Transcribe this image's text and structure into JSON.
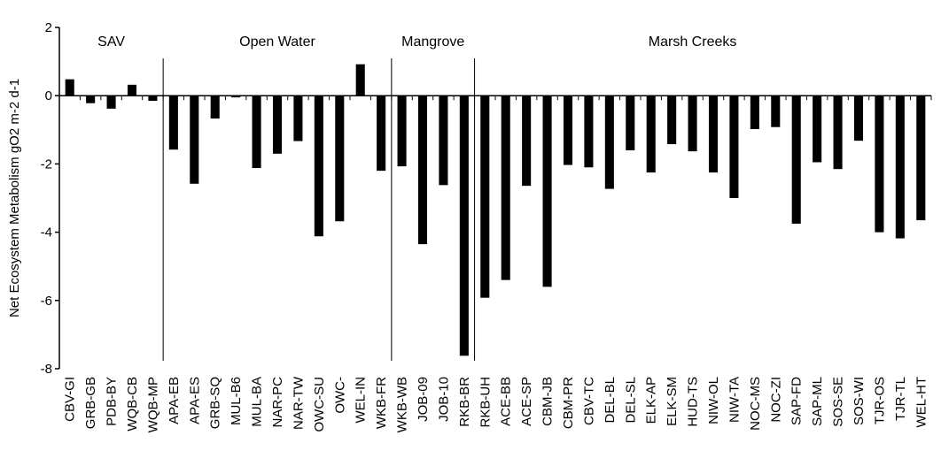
{
  "chart_data": {
    "type": "bar",
    "title": "",
    "xlabel": "",
    "ylabel": "Net Ecosystem Metabolism gO2 m-2 d-1",
    "ylim": [
      -8,
      2
    ],
    "yticks": [
      "2",
      "0",
      "-2",
      "-4",
      "-6",
      "-8"
    ],
    "grid": false,
    "legend": "none",
    "bar_color": "#000000",
    "groups": [
      {
        "name": "SAV",
        "start": 0,
        "end": 4
      },
      {
        "name": "Open Water",
        "start": 5,
        "end": 15
      },
      {
        "name": "Mangrove",
        "start": 16,
        "end": 19
      },
      {
        "name": "Marsh Creeks",
        "start": 20,
        "end": 40
      }
    ],
    "categories": [
      "CBV-GI",
      "GRB-GB",
      "PDB-BY",
      "WQB-CB",
      "WQB-MP",
      "APA-EB",
      "APA-ES",
      "GRB-SQ",
      "MUL-B6",
      "MUL-BA",
      "NAR-PC",
      "NAR-TW",
      "OWC-SU",
      "OWC-",
      "WEL-IN",
      "WKB-FR",
      "WKB-WB",
      "JOB-09",
      "JOB-10",
      "RKB-BR",
      "RKB-UH",
      "ACE-BB",
      "ACE-SP",
      "CBM-JB",
      "CBM-PR",
      "CBV-TC",
      "DEL-BL",
      "DEL-SL",
      "ELK-AP",
      "ELK-SM",
      "HUD-TS",
      "NIW-OL",
      "NIW-TA",
      "NOC-MS",
      "NOC-ZI",
      "SAP-FD",
      "SAP-ML",
      "SOS-SE",
      "SOS-WI",
      "TJR-OS",
      "TJR-TL",
      "WEL-HT"
    ],
    "values": [
      0.48,
      -0.22,
      -0.38,
      0.32,
      -0.15,
      -1.58,
      -2.58,
      -0.67,
      -0.05,
      -2.12,
      -1.7,
      -1.33,
      -4.12,
      -3.68,
      0.92,
      -2.2,
      -2.07,
      -4.35,
      -2.62,
      -7.62,
      -5.92,
      -5.4,
      -2.64,
      -5.6,
      -2.03,
      -2.1,
      -2.73,
      -1.6,
      -2.25,
      -1.42,
      -1.63,
      -2.25,
      -3.0,
      -0.98,
      -0.92,
      -3.75,
      -1.95,
      -2.15,
      -1.32,
      -4.0,
      -4.18,
      -3.65
    ]
  }
}
